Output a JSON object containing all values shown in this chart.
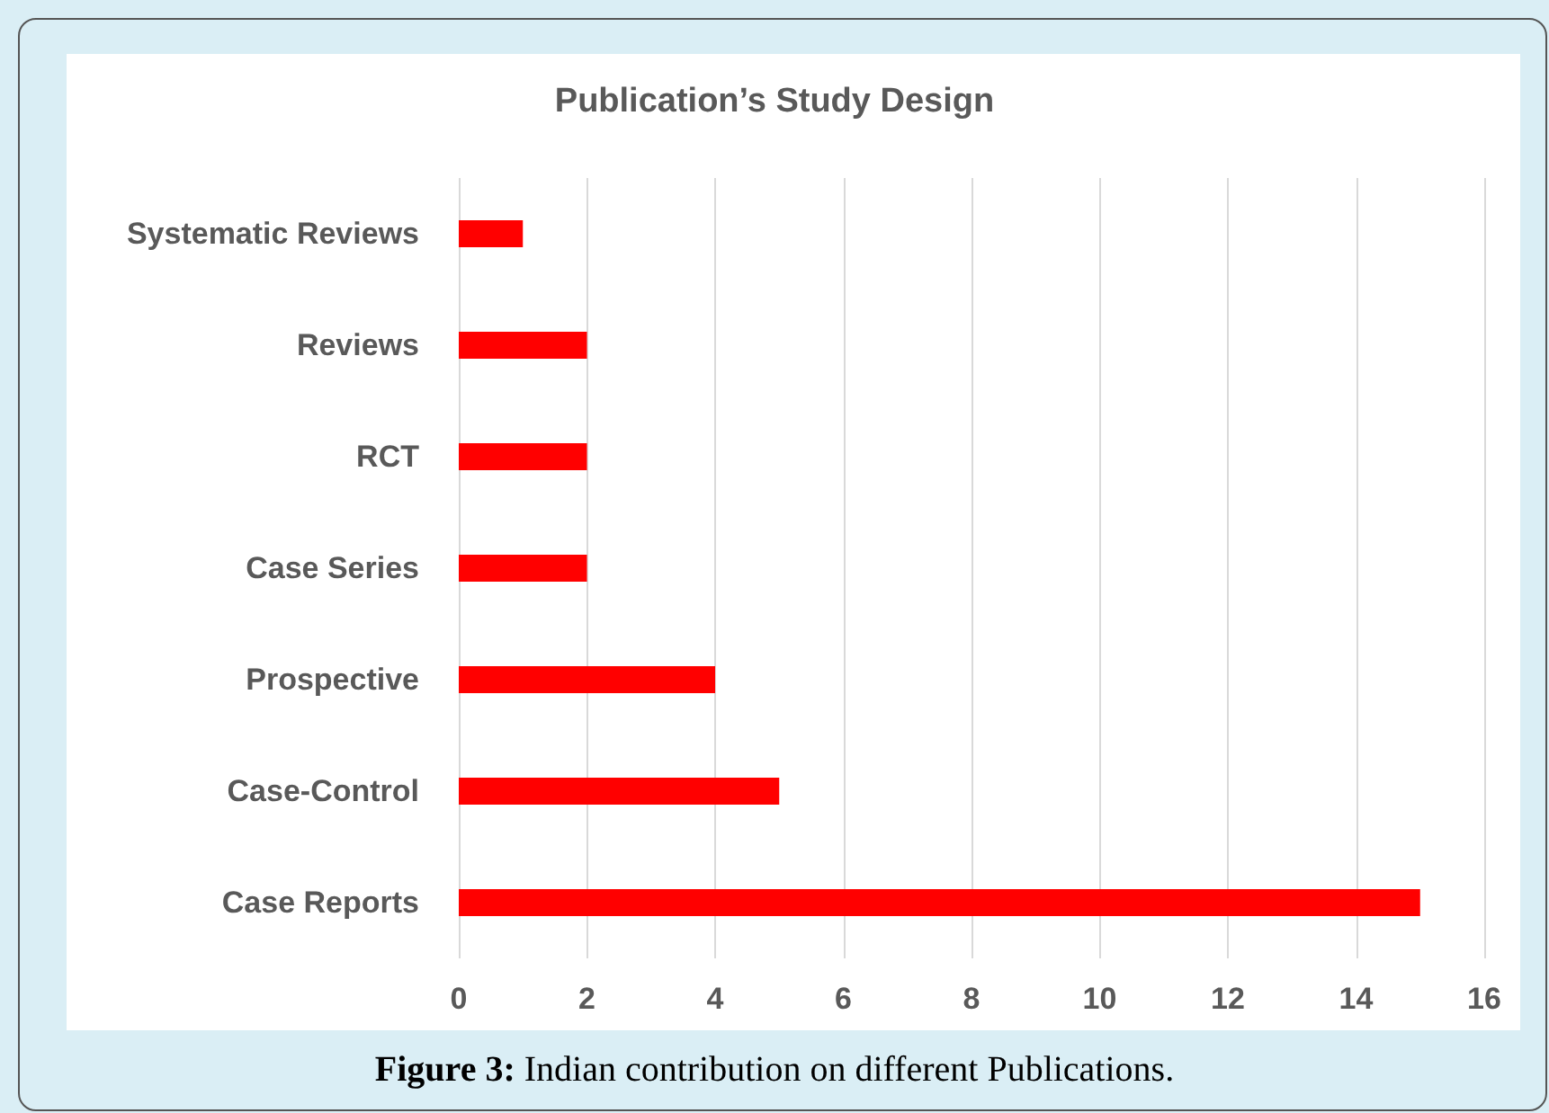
{
  "chart_data": {
    "type": "bar",
    "orientation": "horizontal",
    "title": "Publication’s Study Design",
    "categories": [
      "Systematic Reviews",
      "Reviews",
      "RCT",
      "Case Series",
      "Prospective",
      "Case-Control",
      "Case Reports"
    ],
    "values": [
      1,
      2,
      2,
      2,
      4,
      5,
      15
    ],
    "color": "#ff0000",
    "xlim": [
      0,
      16
    ],
    "xticks": [
      0,
      2,
      4,
      6,
      8,
      10,
      12,
      14,
      16
    ],
    "grid": "x",
    "annotations": [
      "Figure 3: Indian contribution on different Publications."
    ]
  }
}
